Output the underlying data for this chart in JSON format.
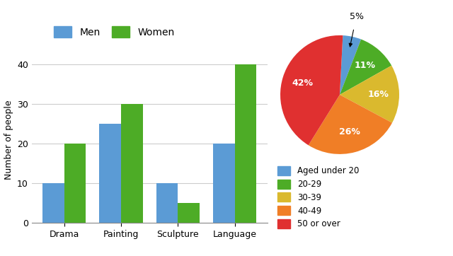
{
  "bar_categories": [
    "Drama",
    "Painting",
    "Sculpture",
    "Language"
  ],
  "men_values": [
    10,
    25,
    10,
    20
  ],
  "women_values": [
    20,
    30,
    5,
    40
  ],
  "men_color": "#5b9bd5",
  "women_color": "#4dac26",
  "bar_ylabel": "Number of people",
  "bar_yticks": [
    0,
    10,
    20,
    30,
    40
  ],
  "bar_ylim": [
    0,
    42
  ],
  "pie_values": [
    5,
    11,
    16,
    26,
    42
  ],
  "pie_labels": [
    "5%",
    "11%",
    "16%",
    "26%",
    "42%"
  ],
  "pie_colors": [
    "#5b9bd5",
    "#4dac26",
    "#dab92e",
    "#f07e26",
    "#e03030"
  ],
  "pie_legend_labels": [
    "Aged under 20",
    "20-29",
    "30-39",
    "40-49",
    "50 or over"
  ],
  "pie_startangle": 87,
  "background_color": "#ffffff",
  "grid_color": "#cccccc",
  "legend_men_label": "Men",
  "legend_women_label": "Women"
}
